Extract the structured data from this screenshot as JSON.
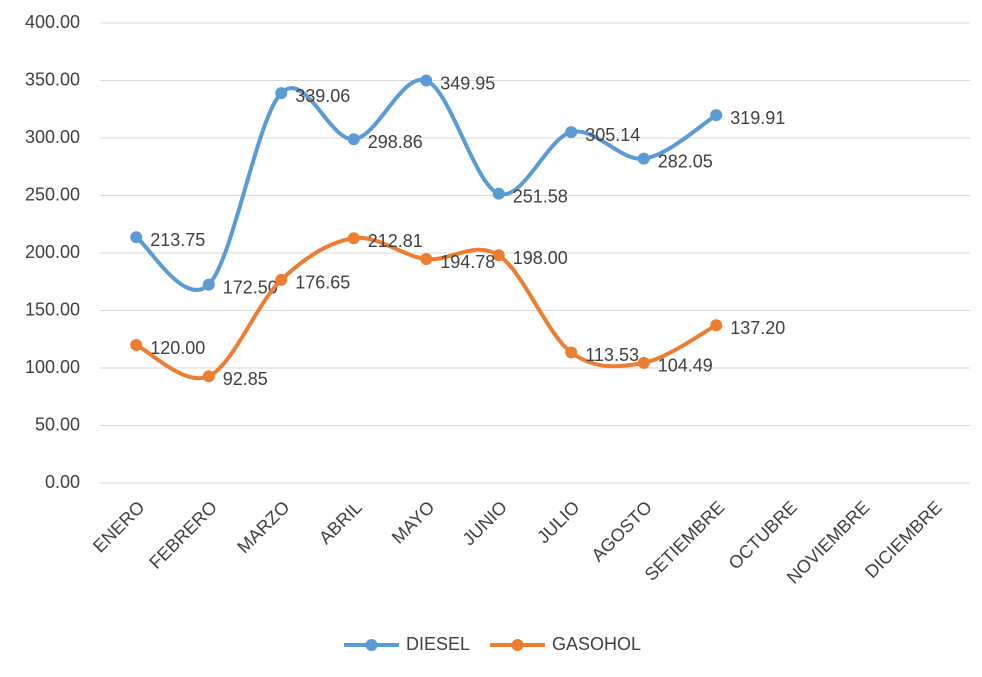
{
  "chart_data": {
    "type": "line",
    "smooth": true,
    "categories": [
      "ENERO",
      "FEBRERO",
      "MARZO",
      "ABRIL",
      "MAYO",
      "JUNIO",
      "JULIO",
      "AGOSTO",
      "SETIEMBRE",
      "OCTUBRE",
      "NOVIEMBRE",
      "DICIEMBRE"
    ],
    "series": [
      {
        "name": "DIESEL",
        "color": "#5B9BD5",
        "values": [
          213.75,
          172.5,
          339.06,
          298.86,
          349.95,
          251.58,
          305.14,
          282.05,
          319.91,
          null,
          null,
          null
        ],
        "value_labels": [
          "213.75",
          "172.50",
          "339.06",
          "298.86",
          "349.95",
          "251.58",
          "305.14",
          "282.05",
          "319.91",
          null,
          null,
          null
        ]
      },
      {
        "name": "GASOHOL",
        "color": "#ED7D31",
        "values": [
          120,
          92.85,
          176.65,
          212.81,
          194.78,
          198,
          113.53,
          104.49,
          137.2,
          null,
          null,
          null
        ],
        "value_labels": [
          "120.00",
          "92.85",
          "176.65",
          "212.81",
          "194.78",
          "198.00",
          "113.53",
          "104.49",
          "137.20",
          null,
          null,
          null
        ]
      }
    ],
    "ylim": [
      0,
      400
    ],
    "yticks": [
      {
        "value": 0,
        "label": "0.00"
      },
      {
        "value": 50,
        "label": "50.00"
      },
      {
        "value": 100,
        "label": "100.00"
      },
      {
        "value": 150,
        "label": "150.00"
      },
      {
        "value": 200,
        "label": "200.00"
      },
      {
        "value": 250,
        "label": "250.00"
      },
      {
        "value": 300,
        "label": "300.00"
      },
      {
        "value": 350,
        "label": "350.00"
      },
      {
        "value": 400,
        "label": "400.00"
      }
    ],
    "grid": true,
    "legend": "bottom"
  }
}
